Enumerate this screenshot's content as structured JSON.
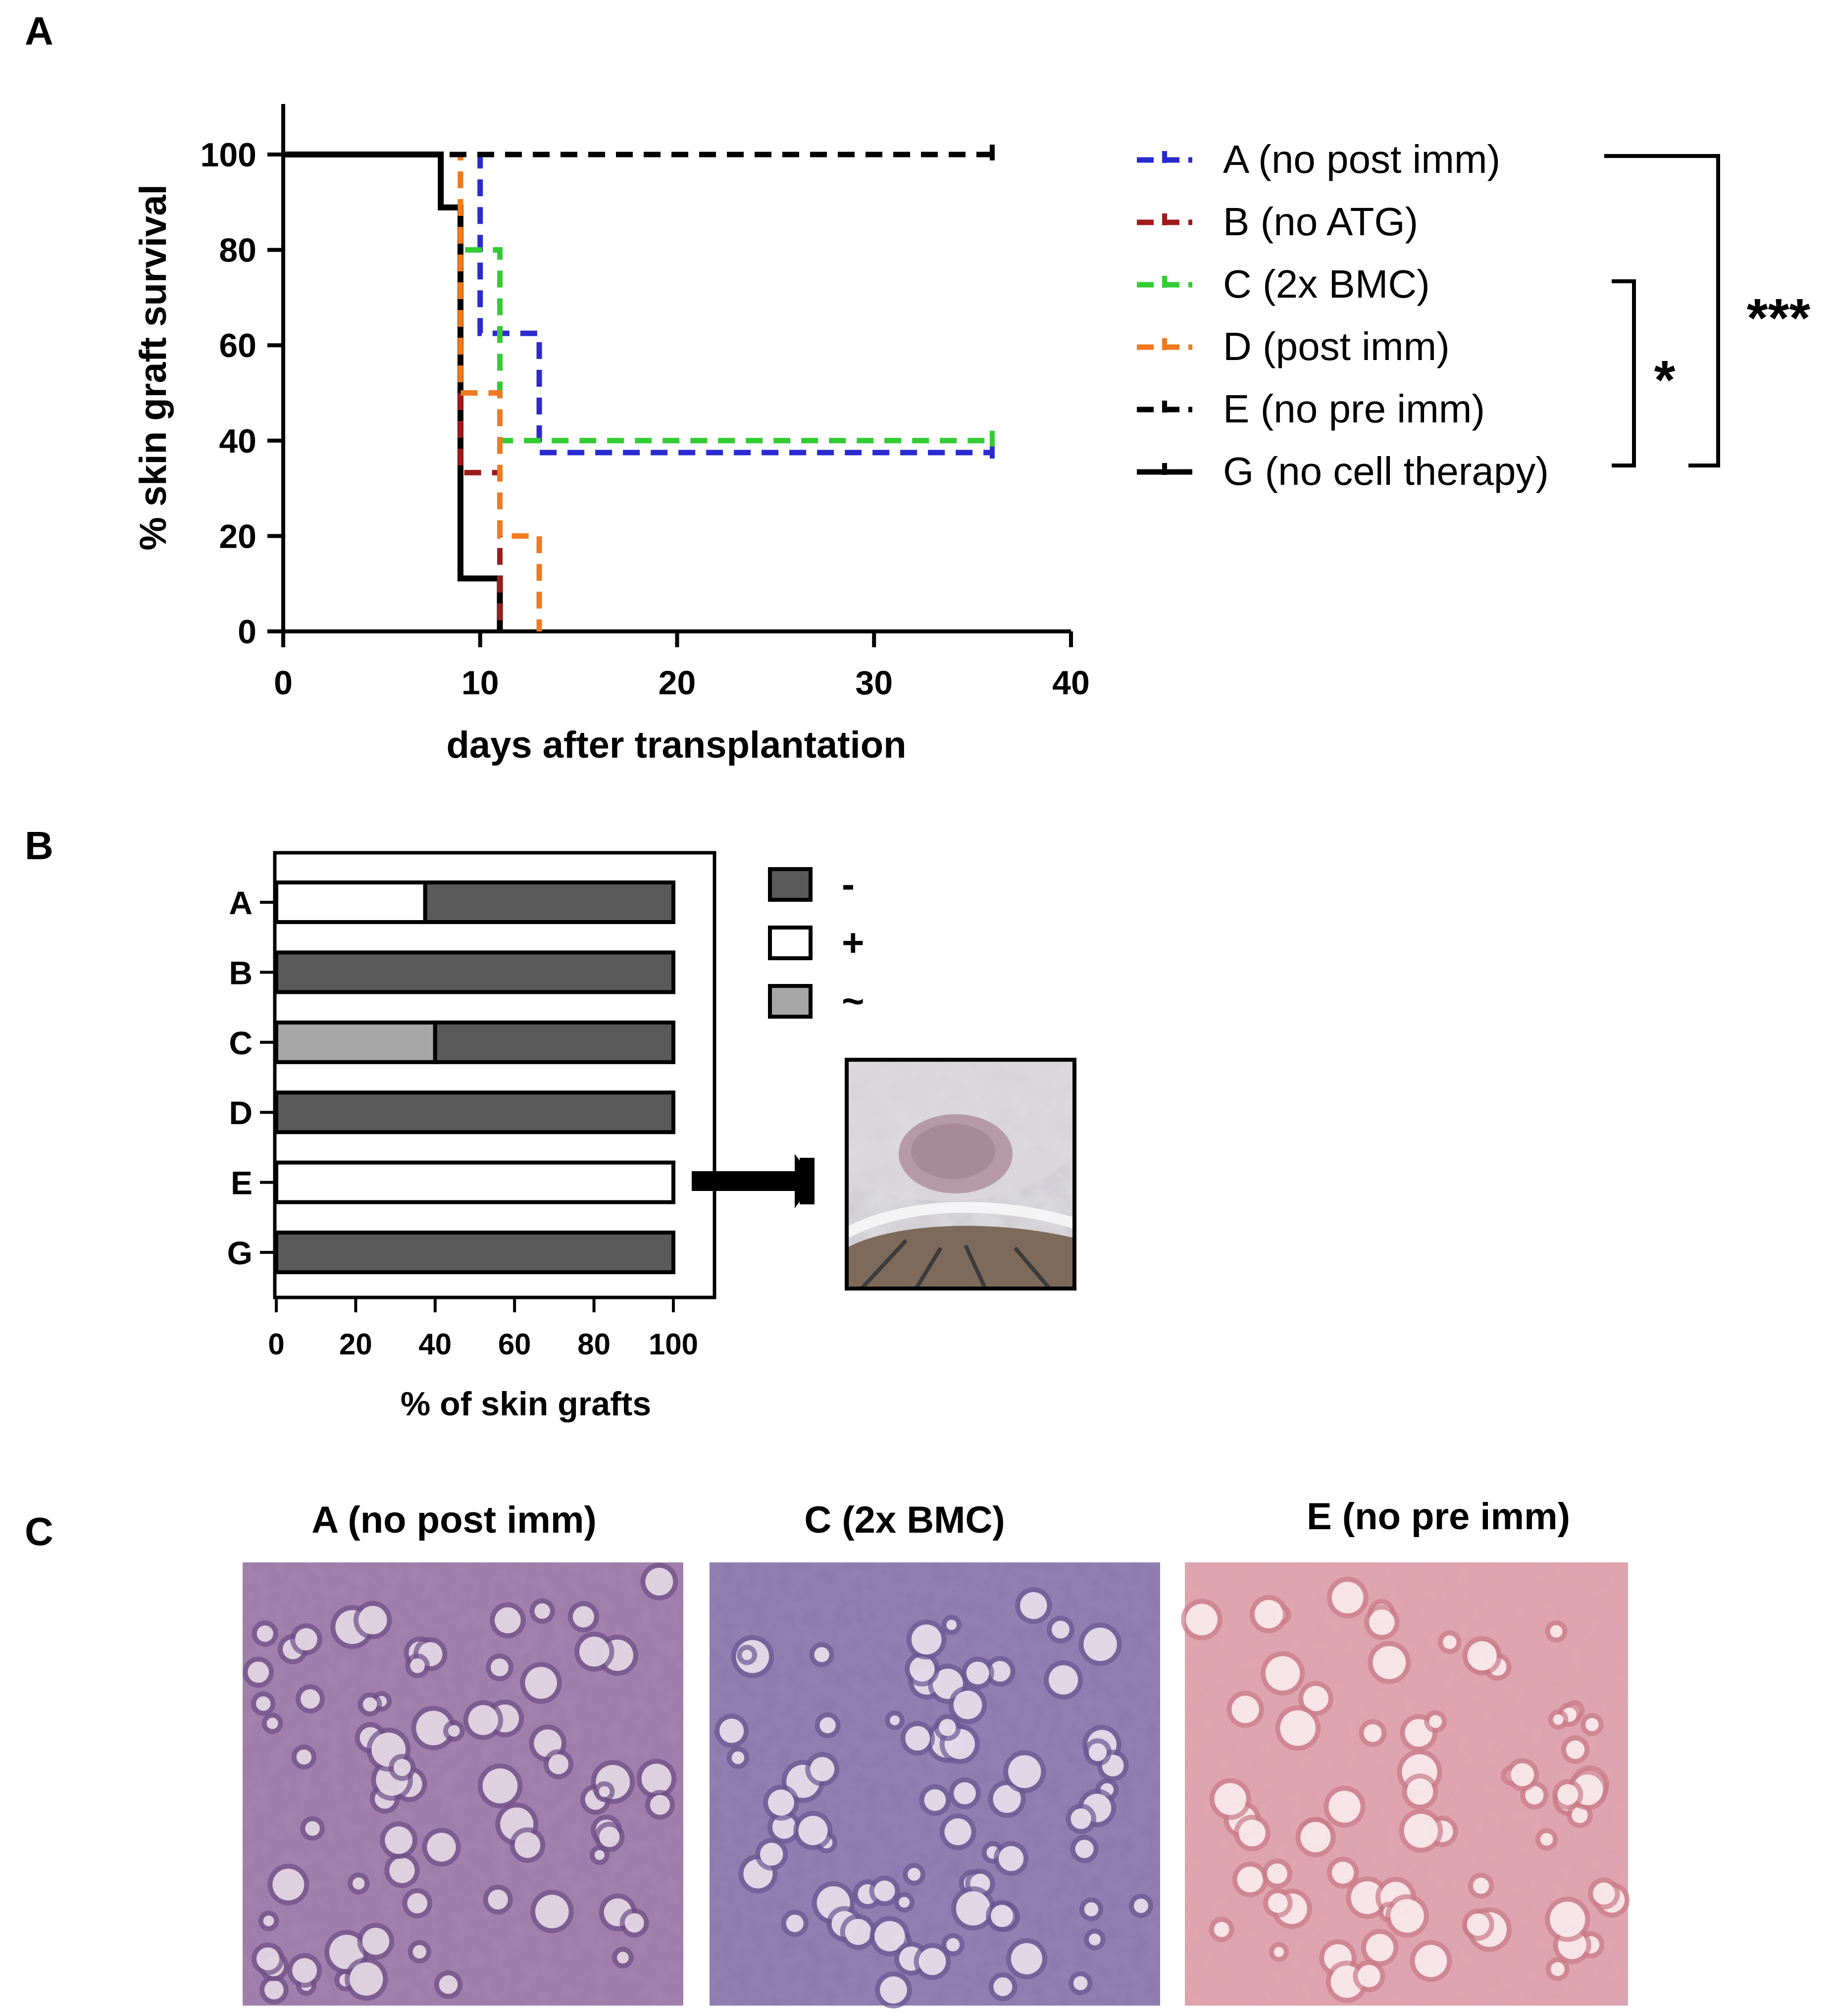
{
  "panels": {
    "a": {
      "label": "A",
      "chart_data": {
        "type": "line",
        "title": "",
        "xlabel": "days after transplantation",
        "ylabel": "% skin graft survival",
        "xlim": [
          0,
          40
        ],
        "ylim": [
          0,
          100
        ],
        "xticks": [
          "0",
          "10",
          "20",
          "30",
          "40"
        ],
        "yticks": [
          "0",
          "20",
          "40",
          "60",
          "80",
          "100"
        ],
        "grid": false,
        "legend_position": "right",
        "series": [
          {
            "name": "A (no post imm)",
            "color": "#2a2ad0",
            "dash": "dashed",
            "steps": [
              [
                0,
                100
              ],
              [
                10,
                100
              ],
              [
                10,
                62.5
              ],
              [
                13,
                62.5
              ],
              [
                13,
                37.5
              ],
              [
                36,
                37.5
              ]
            ]
          },
          {
            "name": "B (no ATG)",
            "color": "#9e1b1b",
            "dash": "dashed",
            "steps": [
              [
                0,
                100
              ],
              [
                9,
                100
              ],
              [
                9,
                33.3
              ],
              [
                11,
                33.3
              ],
              [
                11,
                0
              ]
            ]
          },
          {
            "name": "C (2x BMC)",
            "color": "#33cc33",
            "dash": "dashed",
            "steps": [
              [
                0,
                100
              ],
              [
                9,
                100
              ],
              [
                9,
                80
              ],
              [
                11,
                80
              ],
              [
                11,
                40
              ],
              [
                36,
                40
              ]
            ]
          },
          {
            "name": "D (post imm)",
            "color": "#f07a1f",
            "dash": "dashed",
            "steps": [
              [
                0,
                100
              ],
              [
                9,
                100
              ],
              [
                9,
                50
              ],
              [
                11,
                50
              ],
              [
                11,
                20
              ],
              [
                13,
                20
              ],
              [
                13,
                0
              ]
            ]
          },
          {
            "name": "E (no pre imm)",
            "color": "#000000",
            "dash": "dashed",
            "steps": [
              [
                0,
                100
              ],
              [
                36,
                100
              ]
            ]
          },
          {
            "name": "G (no cell therapy)",
            "color": "#000000",
            "dash": "solid",
            "steps": [
              [
                0,
                100
              ],
              [
                8,
                100
              ],
              [
                8,
                88.9
              ],
              [
                9,
                88.9
              ],
              [
                9,
                11.1
              ],
              [
                11,
                11.1
              ],
              [
                11,
                0
              ]
            ]
          }
        ],
        "annotations": [
          {
            "text": "***",
            "groups": [
              "A (no post imm)",
              "G (no cell therapy)"
            ]
          },
          {
            "text": "*",
            "groups": [
              "C (2x BMC)",
              "G (no cell therapy)"
            ]
          }
        ]
      }
    },
    "b": {
      "label": "B",
      "chart_data": {
        "type": "bar",
        "orientation": "horizontal",
        "stacked": true,
        "title": "",
        "xlabel": "% of skin grafts",
        "ylabel": "",
        "xlim": [
          0,
          100
        ],
        "xticks": [
          "0",
          "20",
          "40",
          "60",
          "80",
          "100"
        ],
        "categories": [
          "A",
          "B",
          "C",
          "D",
          "E",
          "G"
        ],
        "series": [
          {
            "name": "+",
            "color": "#ffffff",
            "values": [
              37.5,
              0,
              0,
              0,
              100,
              0
            ]
          },
          {
            "name": "~",
            "color": "#a6a6a6",
            "values": [
              0,
              0,
              40,
              0,
              0,
              0
            ]
          },
          {
            "name": "-",
            "color": "#595959",
            "values": [
              62.5,
              100,
              60,
              100,
              0,
              100
            ]
          }
        ],
        "legend_order": [
          "-",
          "+",
          "~"
        ],
        "legend_position": "right"
      },
      "photo_icon": "mouse-skin-graft-photo"
    },
    "c": {
      "label": "C",
      "images": [
        {
          "title": "A (no post imm)",
          "tone": "#9e7aa8"
        },
        {
          "title": "C (2x BMC)",
          "tone": "#8c78ad"
        },
        {
          "title": "E (no pre imm)",
          "tone": "#e2a5ad"
        }
      ]
    }
  }
}
